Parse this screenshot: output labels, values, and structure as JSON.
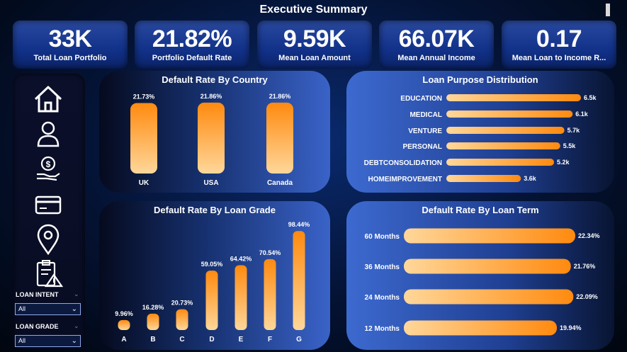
{
  "header": {
    "title": "Executive Summary"
  },
  "kpis": [
    {
      "value": "33K",
      "label": "Total Loan Portfolio"
    },
    {
      "value": "21.82%",
      "label": "Portfolio Default Rate"
    },
    {
      "value": "9.59K",
      "label": "Mean Loan Amount"
    },
    {
      "value": "66.07K",
      "label": "Mean Annual Income"
    },
    {
      "value": "0.17",
      "label": "Mean Loan to Income R..."
    }
  ],
  "nav": [
    {
      "icon": "home-icon"
    },
    {
      "icon": "user-icon"
    },
    {
      "icon": "money-hand-icon"
    },
    {
      "icon": "credit-card-icon"
    },
    {
      "icon": "location-pin-icon"
    },
    {
      "icon": "clipboard-warning-icon"
    }
  ],
  "slicers": {
    "intent": {
      "label": "LOAN INTENT",
      "value": "All"
    },
    "grade": {
      "label": "LOAN GRADE",
      "value": "All"
    }
  },
  "colors": {
    "bar_dark": "#ff8a0f",
    "bar_light": "#ffd79a",
    "accent_blue": "#3a63c8"
  },
  "chart_data": [
    {
      "type": "bar",
      "title": "Default Rate By Country",
      "categories": [
        "UK",
        "USA",
        "Canada"
      ],
      "values": [
        21.73,
        21.86,
        21.86
      ],
      "labels": [
        "21.73%",
        "21.86%",
        "21.86%"
      ]
    },
    {
      "type": "bar",
      "orientation": "horizontal",
      "title": "Loan Purpose Distribution",
      "categories": [
        "EDUCATION",
        "MEDICAL",
        "VENTURE",
        "PERSONAL",
        "DEBTCONSOLIDATION",
        "HOMEIMPROVEMENT"
      ],
      "values": [
        6.5,
        6.1,
        5.7,
        5.5,
        5.2,
        3.6
      ],
      "labels": [
        "6.5k",
        "6.1k",
        "5.7k",
        "5.5k",
        "5.2k",
        "3.6k"
      ]
    },
    {
      "type": "bar",
      "title": "Default Rate By Loan Grade",
      "categories": [
        "A",
        "B",
        "C",
        "D",
        "E",
        "F",
        "G"
      ],
      "values": [
        9.96,
        16.28,
        20.73,
        59.05,
        64.42,
        70.54,
        98.44
      ],
      "labels": [
        "9.96%",
        "16.28%",
        "20.73%",
        "59.05%",
        "64.42%",
        "70.54%",
        "98.44%"
      ]
    },
    {
      "type": "bar",
      "orientation": "horizontal",
      "title": "Default Rate By Loan Term",
      "categories": [
        "60 Months",
        "36 Months",
        "24 Months",
        "12 Months"
      ],
      "values": [
        22.34,
        21.76,
        22.09,
        19.94
      ],
      "labels": [
        "22.34%",
        "21.76%",
        "22.09%",
        "19.94%"
      ]
    }
  ]
}
